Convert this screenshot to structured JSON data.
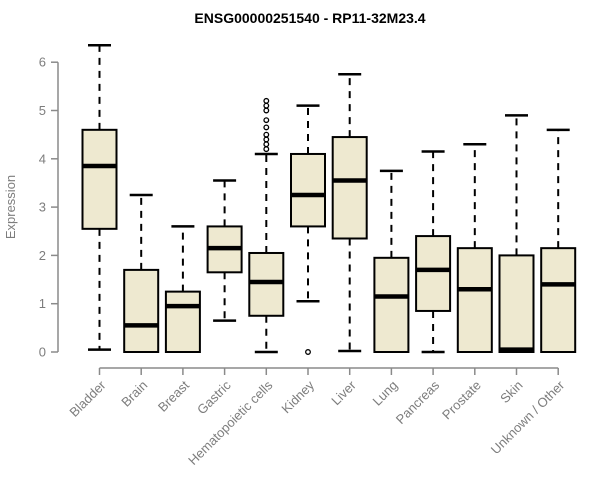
{
  "title": "ENSG00000251540 - RP11-32M23.4",
  "colors": {
    "background": "#ffffff",
    "box_fill": "#EEE9D0",
    "box_stroke": "#000000",
    "median": "#000000",
    "whisker": "#000000",
    "outlier": "#000000",
    "axis": "#8a8a8a",
    "tick_label": "#7d7d7d",
    "axis_label": "#7d7d7d",
    "title": "#000000"
  },
  "chart_data": {
    "type": "boxplot",
    "title": "ENSG00000251540 - RP11-32M23.4",
    "xlabel": "",
    "ylabel": "Expression",
    "ylim": [
      0,
      6
    ],
    "yticks": [
      0,
      1,
      2,
      3,
      4,
      5,
      6
    ],
    "grid": false,
    "legend": false,
    "x_label_rotation": 45,
    "categories": [
      "Bladder",
      "Brain",
      "Breast",
      "Gastric",
      "Hematopoietic cells",
      "Kidney",
      "Liver",
      "Lung",
      "Pancreas",
      "Prostate",
      "Skin",
      "Unknown / Other"
    ],
    "series": [
      {
        "category": "Bladder",
        "min": 0.05,
        "q1": 2.55,
        "median": 3.85,
        "q3": 4.6,
        "max": 6.35,
        "outliers": []
      },
      {
        "category": "Brain",
        "min": 0.0,
        "q1": 0.0,
        "median": 0.55,
        "q3": 1.7,
        "max": 3.25,
        "outliers": []
      },
      {
        "category": "Breast",
        "min": 0.0,
        "q1": 0.0,
        "median": 0.95,
        "q3": 1.25,
        "max": 2.6,
        "outliers": []
      },
      {
        "category": "Gastric",
        "min": 0.65,
        "q1": 1.65,
        "median": 2.15,
        "q3": 2.6,
        "max": 3.55,
        "outliers": []
      },
      {
        "category": "Hematopoietic cells",
        "min": 0.0,
        "q1": 0.75,
        "median": 1.45,
        "q3": 2.05,
        "max": 4.1,
        "outliers": [
          4.2,
          4.3,
          4.4,
          4.5,
          4.65,
          4.8,
          5.0,
          5.1,
          5.2
        ]
      },
      {
        "category": "Kidney",
        "min": 1.05,
        "q1": 2.6,
        "median": 3.25,
        "q3": 4.1,
        "max": 5.1,
        "outliers": [
          0.0
        ]
      },
      {
        "category": "Liver",
        "min": 0.02,
        "q1": 2.35,
        "median": 3.55,
        "q3": 4.45,
        "max": 5.75,
        "outliers": []
      },
      {
        "category": "Lung",
        "min": 0.0,
        "q1": 0.0,
        "median": 1.15,
        "q3": 1.95,
        "max": 3.75,
        "outliers": []
      },
      {
        "category": "Pancreas",
        "min": 0.0,
        "q1": 0.85,
        "median": 1.7,
        "q3": 2.4,
        "max": 4.15,
        "outliers": []
      },
      {
        "category": "Prostate",
        "min": 0.0,
        "q1": 0.0,
        "median": 1.3,
        "q3": 2.15,
        "max": 4.3,
        "outliers": []
      },
      {
        "category": "Skin",
        "min": 0.0,
        "q1": 0.0,
        "median": 0.05,
        "q3": 2.0,
        "max": 4.9,
        "outliers": []
      },
      {
        "category": "Unknown / Other",
        "min": 0.0,
        "q1": 0.0,
        "median": 1.4,
        "q3": 2.15,
        "max": 4.6,
        "outliers": []
      }
    ]
  }
}
